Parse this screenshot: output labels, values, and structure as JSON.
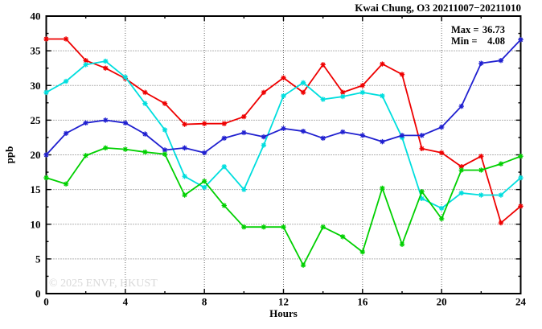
{
  "title": "Kwai Chung, O3 20211007−20211010",
  "stats": {
    "max_key": "Max =",
    "max_value": "36.73",
    "min_key": "Min =",
    "min_value": "4.08"
  },
  "watermark": "© 2025 ENVF, HKUST",
  "colors": {
    "axis": "#000000",
    "grid": "#666666",
    "watermark": "#d9d9d9"
  },
  "chart_data": {
    "type": "line",
    "title": "Kwai Chung, O3 20211007−20211010",
    "xlabel": "Hours",
    "ylabel": "ppb",
    "xlim": [
      0,
      24
    ],
    "ylim": [
      0,
      40
    ],
    "x_major_step": 4,
    "x_minor_step": 2,
    "y_major_step": 5,
    "y_minor_step": 2.5,
    "grid": true,
    "legend_position": "none",
    "annotations": {
      "max": 36.73,
      "min": 4.08
    },
    "x": [
      0,
      1,
      2,
      3,
      4,
      5,
      6,
      7,
      8,
      9,
      10,
      11,
      12,
      13,
      14,
      15,
      16,
      17,
      18,
      19,
      20,
      21,
      22,
      23,
      24
    ],
    "series": [
      {
        "name": "red-station",
        "color": "#ee0000",
        "values": [
          36.7,
          36.7,
          33.6,
          32.5,
          31.0,
          29.0,
          27.4,
          24.4,
          24.5,
          24.5,
          25.5,
          29.0,
          31.1,
          29.0,
          33.0,
          29.0,
          30.0,
          33.1,
          31.6,
          20.9,
          20.3,
          18.3,
          19.8,
          10.2,
          12.6
        ]
      },
      {
        "name": "cyan-station",
        "color": "#00dede",
        "values": [
          29.0,
          30.6,
          33.0,
          33.5,
          31.2,
          27.4,
          23.6,
          16.9,
          15.3,
          18.3,
          15.0,
          21.4,
          28.5,
          30.4,
          28.0,
          28.4,
          29.0,
          28.5,
          22.5,
          13.7,
          12.3,
          14.5,
          14.2,
          14.2,
          16.7
        ]
      },
      {
        "name": "blue-station",
        "color": "#2020d0",
        "values": [
          20.0,
          23.1,
          24.6,
          25.0,
          24.6,
          23.0,
          20.7,
          21.0,
          20.3,
          22.4,
          23.2,
          22.6,
          23.8,
          23.4,
          22.4,
          23.3,
          22.8,
          21.9,
          22.8,
          22.8,
          24.0,
          27.0,
          33.2,
          33.6,
          36.6
        ]
      },
      {
        "name": "green-station",
        "color": "#00d000",
        "values": [
          16.7,
          15.8,
          19.9,
          21.0,
          20.8,
          20.4,
          20.1,
          14.2,
          16.2,
          12.7,
          9.6,
          9.6,
          9.6,
          4.1,
          9.6,
          8.2,
          6.0,
          15.2,
          7.1,
          14.7,
          10.8,
          17.8,
          17.8,
          18.7,
          19.8
        ]
      }
    ]
  }
}
